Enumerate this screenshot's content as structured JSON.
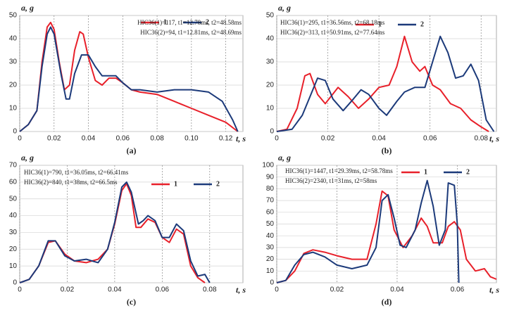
{
  "chart_data": [
    {
      "type": "line",
      "panel": "(a)",
      "xlabel": "t, s",
      "ylabel": "a, g",
      "annotations": [
        "HIC36(1)=117, t1=12.78ms, t2=48.58ms",
        "HIC36(2)=94, t1=12.81ms, t2=48.69ms"
      ],
      "xlim": [
        0,
        0.13
      ],
      "xticks": [
        0,
        0.02,
        0.04,
        0.06,
        0.08,
        {
          "value": 0.1,
          "label": "0.10"
        },
        0.12
      ],
      "ylim": [
        0,
        50
      ],
      "yticks": [
        0,
        10,
        20,
        30,
        40,
        50
      ],
      "grid": true,
      "series": [
        {
          "name": "1",
          "color": "#e8202a",
          "x": [
            0,
            0.005,
            0.01,
            0.013,
            0.016,
            0.018,
            0.02,
            0.023,
            0.026,
            0.029,
            0.032,
            0.035,
            0.037,
            0.04,
            0.044,
            0.048,
            0.052,
            0.056,
            0.06,
            0.065,
            0.07,
            0.08,
            0.09,
            0.1,
            0.11,
            0.12,
            0.127
          ],
          "values": [
            0,
            3,
            9,
            30,
            45,
            47,
            44,
            30,
            18,
            20,
            35,
            43,
            42,
            32,
            22,
            20,
            23,
            23,
            21,
            18,
            17,
            16,
            13,
            10,
            7,
            4,
            0
          ]
        },
        {
          "name": "2",
          "color": "#1c3a7a",
          "x": [
            0,
            0.005,
            0.01,
            0.013,
            0.016,
            0.018,
            0.02,
            0.024,
            0.027,
            0.029,
            0.032,
            0.036,
            0.04,
            0.044,
            0.048,
            0.052,
            0.056,
            0.06,
            0.065,
            0.07,
            0.08,
            0.09,
            0.1,
            0.11,
            0.118,
            0.124,
            0.127
          ],
          "values": [
            0,
            3,
            9,
            28,
            42,
            45,
            42,
            25,
            14,
            14,
            25,
            33,
            33,
            28,
            24,
            24,
            24,
            21,
            18,
            18,
            17,
            18,
            18,
            17,
            13,
            5,
            0
          ]
        }
      ]
    },
    {
      "type": "line",
      "panel": "(b)",
      "xlabel": "t, s",
      "ylabel": "a, g",
      "annotations": [
        "HIC36(1)=295, t1=36.56ms, t2=68.18ms",
        "HIC36(2)=313, t1=50.91ms, t2=77.64ms"
      ],
      "xlim": [
        0,
        0.086
      ],
      "xticks": [
        0,
        0.02,
        0.04,
        0.06,
        0.08
      ],
      "ylim": [
        0,
        50
      ],
      "yticks": [
        0,
        10,
        20,
        30,
        40,
        50
      ],
      "grid": true,
      "series": [
        {
          "name": "1",
          "color": "#e8202a",
          "x": [
            0,
            0.004,
            0.008,
            0.011,
            0.013,
            0.016,
            0.019,
            0.024,
            0.028,
            0.032,
            0.036,
            0.04,
            0.044,
            0.047,
            0.05,
            0.053,
            0.056,
            0.058,
            0.061,
            0.064,
            0.068,
            0.072,
            0.076,
            0.08,
            0.083
          ],
          "values": [
            0,
            1,
            10,
            24,
            25,
            16,
            12,
            19,
            15,
            10,
            14,
            19,
            20,
            28,
            41,
            30,
            26,
            28,
            20,
            18,
            12,
            10,
            5,
            2,
            0
          ]
        },
        {
          "name": "2",
          "color": "#1c3a7a",
          "x": [
            0,
            0.006,
            0.01,
            0.013,
            0.016,
            0.019,
            0.022,
            0.026,
            0.03,
            0.033,
            0.036,
            0.04,
            0.043,
            0.047,
            0.05,
            0.054,
            0.058,
            0.061,
            0.064,
            0.067,
            0.07,
            0.073,
            0.076,
            0.079,
            0.082,
            0.085
          ],
          "values": [
            0,
            1,
            7,
            15,
            23,
            22,
            14,
            9,
            14,
            18,
            16,
            10,
            7,
            13,
            17,
            19,
            19,
            30,
            41,
            34,
            23,
            24,
            29,
            22,
            5,
            0
          ]
        }
      ]
    },
    {
      "type": "line",
      "panel": "(c)",
      "xlabel": "t, s",
      "ylabel": "a, g",
      "annotations": [
        "HIC36(1)=790, t1=36.05ms, t2=66.41ms",
        "HIC36(2)=840, t1=38ms, t2=66.5ms"
      ],
      "xlim": [
        0,
        0.094
      ],
      "xticks": [
        0,
        0.02,
        0.04,
        0.06,
        0.08
      ],
      "ylim": [
        0,
        70
      ],
      "yticks": [
        0,
        10,
        20,
        30,
        40,
        50,
        60,
        70
      ],
      "grid": true,
      "series": [
        {
          "name": "1",
          "color": "#e8202a",
          "x": [
            0,
            0.004,
            0.008,
            0.012,
            0.015,
            0.019,
            0.023,
            0.028,
            0.033,
            0.037,
            0.04,
            0.043,
            0.045,
            0.047,
            0.049,
            0.051,
            0.054,
            0.057,
            0.06,
            0.063,
            0.066,
            0.069,
            0.072,
            0.075,
            0.078
          ],
          "values": [
            0,
            2,
            10,
            24,
            25,
            17,
            13,
            12,
            14,
            20,
            35,
            55,
            59,
            52,
            33,
            33,
            38,
            36,
            27,
            24,
            32,
            29,
            10,
            3,
            0
          ]
        },
        {
          "name": "2",
          "color": "#1c3a7a",
          "x": [
            0,
            0.004,
            0.008,
            0.012,
            0.015,
            0.019,
            0.023,
            0.028,
            0.033,
            0.037,
            0.04,
            0.043,
            0.045,
            0.047,
            0.05,
            0.052,
            0.054,
            0.057,
            0.06,
            0.063,
            0.066,
            0.069,
            0.072,
            0.075,
            0.078,
            0.08
          ],
          "values": [
            0,
            2,
            10,
            25,
            25,
            16,
            13,
            14,
            12,
            20,
            36,
            57,
            60,
            54,
            35,
            37,
            40,
            37,
            27,
            27,
            35,
            31,
            13,
            4,
            5,
            0
          ]
        }
      ]
    },
    {
      "type": "line",
      "panel": "(d)",
      "xlabel": "t, s",
      "ylabel": "a, g",
      "annotations": [
        "HIC36(1)=1447, t1=29.39ms, t2=58.78ms",
        "HIC36(2)=2340, t1=31ms, t2=58ms"
      ],
      "xlim": [
        0,
        0.073
      ],
      "xticks": [
        0,
        0.02,
        0.04,
        0.06
      ],
      "ylim": [
        0,
        100
      ],
      "yticks": [
        0,
        10,
        20,
        30,
        40,
        50,
        60,
        70,
        80,
        90,
        100
      ],
      "grid": true,
      "series": [
        {
          "name": "1",
          "color": "#e8202a",
          "x": [
            0,
            0.003,
            0.006,
            0.009,
            0.012,
            0.016,
            0.02,
            0.025,
            0.03,
            0.033,
            0.035,
            0.037,
            0.039,
            0.042,
            0.045,
            0.048,
            0.05,
            0.052,
            0.055,
            0.057,
            0.059,
            0.061,
            0.063,
            0.066,
            0.069,
            0.071,
            0.073
          ],
          "values": [
            0,
            2,
            10,
            25,
            28,
            26,
            23,
            20,
            20,
            50,
            78,
            74,
            45,
            30,
            40,
            55,
            48,
            34,
            34,
            48,
            52,
            45,
            20,
            10,
            12,
            5,
            3
          ]
        },
        {
          "name": "2",
          "color": "#1c3a7a",
          "x": [
            0,
            0.003,
            0.006,
            0.009,
            0.012,
            0.016,
            0.02,
            0.025,
            0.03,
            0.033,
            0.035,
            0.037,
            0.039,
            0.041,
            0.043,
            0.046,
            0.048,
            0.05,
            0.052,
            0.054,
            0.056,
            0.057,
            0.059,
            0.06,
            0.0605
          ],
          "values": [
            0,
            2,
            15,
            24,
            26,
            22,
            15,
            12,
            15,
            30,
            70,
            75,
            55,
            32,
            30,
            45,
            68,
            87,
            65,
            32,
            45,
            85,
            83,
            50,
            0
          ]
        }
      ]
    }
  ]
}
